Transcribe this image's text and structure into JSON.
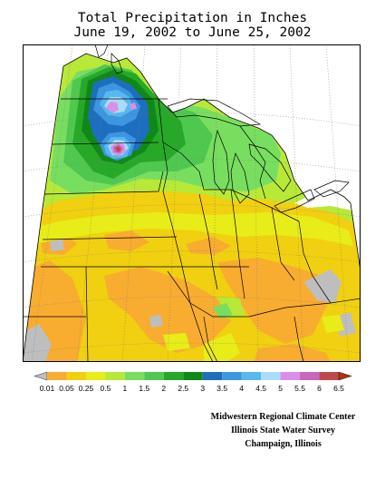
{
  "title": {
    "line1": "Total Precipitation in Inches",
    "line2": "June 19, 2002 to June 25, 2002"
  },
  "legend": {
    "labels": [
      "0.01",
      "0.05",
      "0.25",
      "0.5",
      "1",
      "1.5",
      "2",
      "2.5",
      "3",
      "3.5",
      "4",
      "4.5",
      "5",
      "5.5",
      "6",
      "6.5"
    ],
    "colors": [
      "#bebebe",
      "#f8ac30",
      "#f0d010",
      "#e8ec18",
      "#b8e838",
      "#78de60",
      "#50c850",
      "#28a828",
      "#108818",
      "#1e6ec0",
      "#3c96e0",
      "#58b8f0",
      "#a8dcf8",
      "#d890e8",
      "#c868b8",
      "#c04848",
      "#a83418"
    ]
  },
  "colors": {
    "no_data": "#ffffff",
    "state_lines": "#000000",
    "grid": "#7a7a7a",
    "frame": "#000000"
  },
  "credits": {
    "line1": "Midwestern Regional Climate Center",
    "line2": "Illinois State Water Survey",
    "line3": "Champaign, Illinois"
  }
}
